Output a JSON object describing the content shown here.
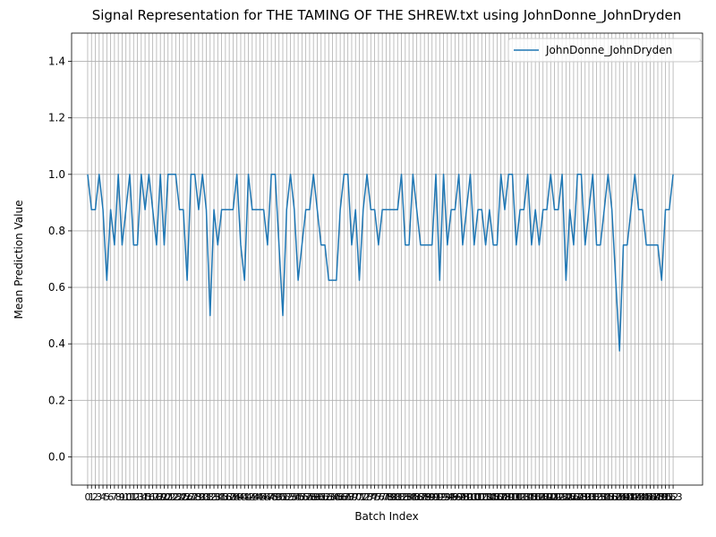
{
  "chart_data": {
    "type": "line",
    "title": "Signal Representation for THE TAMING OF THE SHREW.txt using JohnDonne_JohnDryden",
    "xlabel": "Batch Index",
    "ylabel": "Mean Prediction Value",
    "x": [
      0,
      1,
      2,
      3,
      4,
      5,
      6,
      7,
      8,
      9,
      10,
      11,
      12,
      13,
      14,
      15,
      16,
      17,
      18,
      19,
      20,
      21,
      22,
      23,
      24,
      25,
      26,
      27,
      28,
      29,
      30,
      31,
      32,
      33,
      34,
      35,
      36,
      37,
      38,
      39,
      40,
      41,
      42,
      43,
      44,
      45,
      46,
      47,
      48,
      49,
      50,
      51,
      52,
      53,
      54,
      55,
      56,
      57,
      58,
      59,
      60,
      61,
      62,
      63,
      64,
      65,
      66,
      67,
      68,
      69,
      70,
      71,
      72,
      73,
      74,
      75,
      76,
      77,
      78,
      79,
      80,
      81,
      82,
      83,
      84,
      85,
      86,
      87,
      88,
      89,
      90,
      91,
      92,
      93,
      94,
      95,
      96,
      97,
      98,
      99,
      100,
      101,
      102,
      103,
      104,
      105,
      106,
      107,
      108,
      109,
      110,
      111,
      112,
      113,
      114,
      115,
      116,
      117,
      118,
      119,
      120,
      121,
      122,
      123,
      124,
      125,
      126,
      127,
      128,
      129,
      130,
      131,
      132,
      133,
      134,
      135,
      136,
      137,
      138,
      139,
      140,
      141,
      142,
      143,
      144,
      145,
      146,
      147,
      148,
      149,
      150,
      151,
      152,
      153
    ],
    "series": [
      {
        "name": "JohnDonne_JohnDryden",
        "color": "#1f77b4",
        "values": [
          1,
          0.875,
          0.875,
          1,
          0.875,
          0.625,
          0.875,
          0.75,
          1,
          0.75,
          0.875,
          1,
          0.75,
          0.75,
          1,
          0.875,
          1,
          0.875,
          0.75,
          1,
          0.75,
          1,
          1,
          1,
          0.875,
          0.875,
          0.625,
          1,
          1,
          0.875,
          1,
          0.875,
          0.5,
          0.875,
          0.75,
          0.875,
          0.875,
          0.875,
          0.875,
          1,
          0.75,
          0.625,
          1,
          0.875,
          0.875,
          0.875,
          0.875,
          0.75,
          1,
          1,
          0.75,
          0.5,
          0.875,
          1,
          0.875,
          0.625,
          0.75,
          0.875,
          0.875,
          1,
          0.875,
          0.75,
          0.75,
          0.625,
          0.625,
          0.625,
          0.875,
          1,
          1,
          0.75,
          0.875,
          0.625,
          0.875,
          1,
          0.875,
          0.875,
          0.75,
          0.875,
          0.875,
          0.875,
          0.875,
          0.875,
          1,
          0.75,
          0.75,
          1,
          0.875,
          0.75,
          0.75,
          0.75,
          0.75,
          1,
          0.625,
          1,
          0.75,
          0.875,
          0.875,
          1,
          0.75,
          0.875,
          1,
          0.75,
          0.875,
          0.875,
          0.75,
          0.875,
          0.75,
          0.75,
          1,
          0.875,
          1,
          1,
          0.75,
          0.875,
          0.875,
          1,
          0.75,
          0.875,
          0.75,
          0.875,
          0.875,
          1,
          0.875,
          0.875,
          1,
          0.625,
          0.875,
          0.75,
          1,
          1,
          0.75,
          0.875,
          1,
          0.75,
          0.75,
          0.875,
          1,
          0.875,
          0.625,
          0.375,
          0.75,
          0.75,
          0.875,
          1,
          0.875,
          0.875,
          0.75,
          0.75,
          0.75,
          0.75,
          0.625,
          0.875,
          0.875,
          1
        ]
      }
    ],
    "xlim": [
      -4.2,
      160.7
    ],
    "xticks": [
      0,
      1,
      2,
      3,
      4,
      5,
      6,
      7,
      8,
      9,
      10,
      11,
      12,
      13,
      14,
      15,
      16,
      17,
      18,
      19,
      20,
      21,
      22,
      23,
      24,
      25,
      26,
      27,
      28,
      29,
      30,
      31,
      32,
      33,
      34,
      35,
      36,
      37,
      38,
      39,
      40,
      41,
      42,
      43,
      44,
      45,
      46,
      47,
      48,
      49,
      50,
      51,
      52,
      53,
      54,
      55,
      56,
      57,
      58,
      59,
      60,
      61,
      62,
      63,
      64,
      65,
      66,
      67,
      68,
      69,
      70,
      71,
      72,
      73,
      74,
      75,
      76,
      77,
      78,
      79,
      80,
      81,
      82,
      83,
      84,
      85,
      86,
      87,
      88,
      89,
      90,
      91,
      92,
      93,
      94,
      95,
      96,
      97,
      98,
      99,
      100,
      101,
      102,
      103,
      104,
      105,
      106,
      107,
      108,
      109,
      110,
      111,
      112,
      113,
      114,
      115,
      116,
      117,
      118,
      119,
      120,
      121,
      122,
      123,
      124,
      125,
      126,
      127,
      128,
      129,
      130,
      131,
      132,
      133,
      134,
      135,
      136,
      137,
      138,
      139,
      140,
      141,
      142,
      143,
      144,
      145,
      146,
      147,
      148,
      149,
      150,
      151,
      152,
      153
    ],
    "ylim": [
      -0.1,
      1.5
    ],
    "yticks": [
      {
        "value": 0,
        "label": "0.0"
      },
      {
        "value": 0.2,
        "label": "0.2"
      },
      {
        "value": 0.4,
        "label": "0.4"
      },
      {
        "value": 0.6,
        "label": "0.6"
      },
      {
        "value": 0.8,
        "label": "0.8"
      },
      {
        "value": 1,
        "label": "1.0"
      },
      {
        "value": 1.2,
        "label": "1.2"
      },
      {
        "value": 1.4,
        "label": "1.4"
      }
    ],
    "grid": true,
    "legend": "upper-right"
  }
}
